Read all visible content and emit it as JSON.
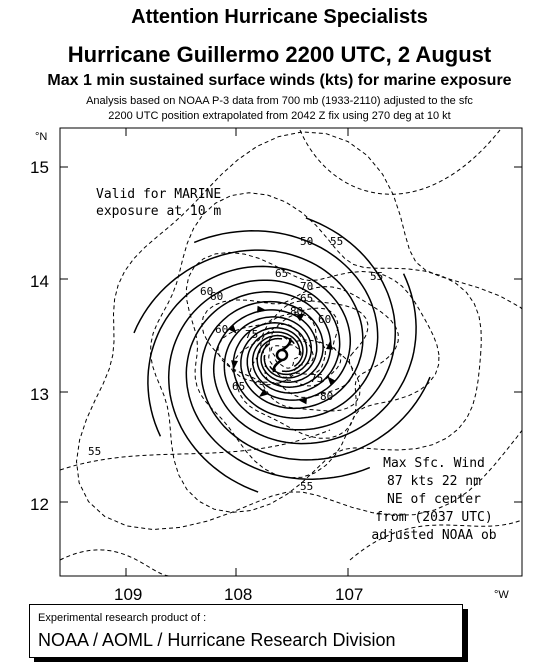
{
  "header": {
    "line1": "Attention Hurricane Specialists",
    "line2": "Hurricane Guillermo  2200 UTC, 2 August",
    "line3": "Max 1 min sustained surface winds (kts) for marine exposure",
    "line4": "Analysis based on  NOAA P-3  data from 700  mb (1933-2110) adjusted to the sfc",
    "line5": "2200 UTC position extrapolated from 2042 Z fix using 270 deg at 10 kt"
  },
  "map": {
    "lat_unit": "°N",
    "lon_unit": "°W",
    "lat_ticks": [
      "15",
      "14",
      "13",
      "12"
    ],
    "lon_ticks": [
      "109",
      "108",
      "107"
    ],
    "valid_note": [
      "Valid for MARINE",
      "exposure at 10 m"
    ],
    "max_wind_note": [
      "Max Sfc. Wind",
      "87 kts 22 nm",
      "NE of center",
      "from (2037 UTC)",
      "adjusted  NOAA ob"
    ],
    "isotach_labels": [
      "50",
      "55",
      "55",
      "55",
      "55",
      "60",
      "60",
      "60",
      "60",
      "65",
      "65",
      "70",
      "75",
      "75",
      "80",
      "80",
      "65"
    ]
  },
  "footer": {
    "line1": "Experimental research product of :",
    "line2": "NOAA / AOML / Hurricane Research Division"
  }
}
